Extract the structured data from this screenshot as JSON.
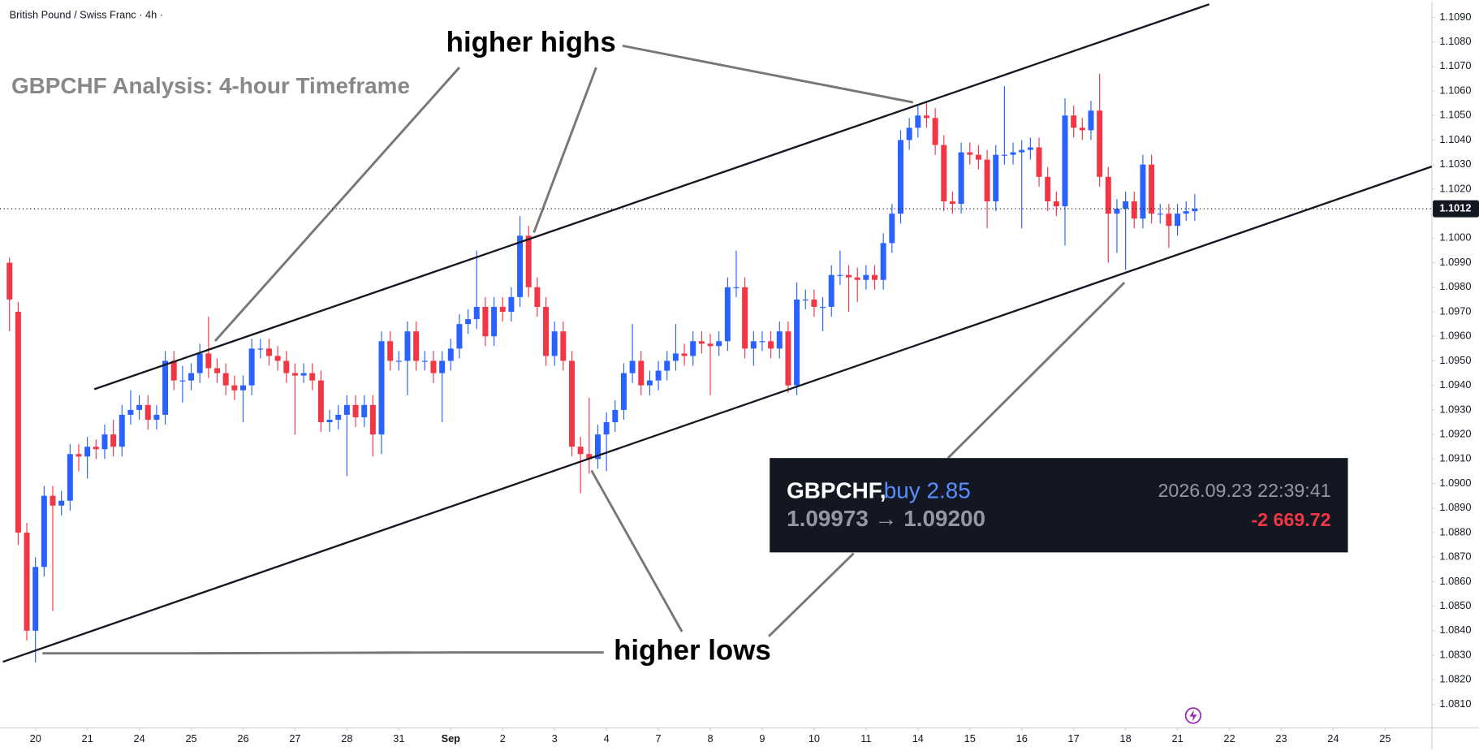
{
  "chart_data": {
    "type": "candlestick",
    "header": "British Pound / Swiss Franc · 4h ·",
    "title": "GBPCHF Analysis: 4-hour Timeframe",
    "annotations": {
      "highs": "higher highs",
      "lows": "higher lows"
    },
    "trade": {
      "symbol": "GBPCHF,",
      "side": "buy 2.85",
      "time": "2026.09.23 22:39:41",
      "prices": "1.09973 → 1.09200",
      "pnl": "-2 669.72"
    },
    "up_color": "#2962ff",
    "down_color": "#f23645",
    "last_price": 1.1012,
    "ylim": [
      1.08004,
      1.10965
    ],
    "yticks": [
      {
        "value": 1.081,
        "label": "1.0810"
      },
      {
        "value": 1.082,
        "label": "1.0820"
      },
      {
        "value": 1.083,
        "label": "1.0830"
      },
      {
        "value": 1.084,
        "label": "1.0840"
      },
      {
        "value": 1.085,
        "label": "1.0850"
      },
      {
        "value": 1.086,
        "label": "1.0860"
      },
      {
        "value": 1.087,
        "label": "1.0870"
      },
      {
        "value": 1.088,
        "label": "1.0880"
      },
      {
        "value": 1.089,
        "label": "1.0890"
      },
      {
        "value": 1.09,
        "label": "1.0900"
      },
      {
        "value": 1.091,
        "label": "1.0910"
      },
      {
        "value": 1.092,
        "label": "1.0920"
      },
      {
        "value": 1.093,
        "label": "1.0930"
      },
      {
        "value": 1.094,
        "label": "1.0940"
      },
      {
        "value": 1.095,
        "label": "1.0950"
      },
      {
        "value": 1.096,
        "label": "1.0960"
      },
      {
        "value": 1.097,
        "label": "1.0970"
      },
      {
        "value": 1.098,
        "label": "1.0980"
      },
      {
        "value": 1.099,
        "label": "1.0990"
      },
      {
        "value": 1.1,
        "label": "1.1000"
      },
      {
        "value": 1.101,
        "label": "1.1010"
      },
      {
        "value": 1.102,
        "label": "1.1020"
      },
      {
        "value": 1.103,
        "label": "1.1030"
      },
      {
        "value": 1.104,
        "label": "1.1040"
      },
      {
        "value": 1.105,
        "label": "1.1050"
      },
      {
        "value": 1.106,
        "label": "1.1060"
      },
      {
        "value": 1.107,
        "label": "1.1070"
      },
      {
        "value": 1.108,
        "label": "1.1080"
      },
      {
        "value": 1.109,
        "label": "1.1090"
      }
    ],
    "xlim": [
      -1.1,
      164.4
    ],
    "xticks": [
      {
        "value": 3,
        "label": "20"
      },
      {
        "value": 9,
        "label": "21"
      },
      {
        "value": 15,
        "label": "24"
      },
      {
        "value": 21,
        "label": "25"
      },
      {
        "value": 27,
        "label": "26"
      },
      {
        "value": 33,
        "label": "27"
      },
      {
        "value": 39,
        "label": "28"
      },
      {
        "value": 45,
        "label": "31"
      },
      {
        "value": 51,
        "label": "Sep"
      },
      {
        "value": 57,
        "label": "2"
      },
      {
        "value": 63,
        "label": "3"
      },
      {
        "value": 69,
        "label": "4"
      },
      {
        "value": 75,
        "label": "7"
      },
      {
        "value": 81,
        "label": "8"
      },
      {
        "value": 87,
        "label": "9"
      },
      {
        "value": 93,
        "label": "10"
      },
      {
        "value": 99,
        "label": "11"
      },
      {
        "value": 105,
        "label": "14"
      },
      {
        "value": 111,
        "label": "15"
      },
      {
        "value": 117,
        "label": "16"
      },
      {
        "value": 123,
        "label": "17"
      },
      {
        "value": 129,
        "label": "18"
      },
      {
        "value": 135,
        "label": "21"
      },
      {
        "value": 141,
        "label": "22"
      },
      {
        "value": 147,
        "label": "23"
      },
      {
        "value": 153,
        "label": "24"
      },
      {
        "value": 159,
        "label": "25"
      }
    ],
    "ohlc": [
      [
        1.099,
        1.0992,
        1.0962,
        1.0975
      ],
      [
        1.097,
        1.0974,
        1.0875,
        1.088
      ],
      [
        1.088,
        1.0884,
        1.0836,
        1.084
      ],
      [
        1.084,
        1.087,
        1.0827,
        1.0866
      ],
      [
        1.0866,
        1.0899,
        1.0862,
        1.0895
      ],
      [
        1.0895,
        1.0899,
        1.0848,
        1.0891
      ],
      [
        1.0891,
        1.0897,
        1.0887,
        1.0893
      ],
      [
        1.0893,
        1.0916,
        1.0889,
        1.0912
      ],
      [
        1.0912,
        1.0916,
        1.0905,
        1.0911
      ],
      [
        1.0911,
        1.0919,
        1.0902,
        1.0915
      ],
      [
        1.0915,
        1.0918,
        1.091,
        1.0914
      ],
      [
        1.0914,
        1.0924,
        1.091,
        1.092
      ],
      [
        1.092,
        1.0926,
        1.0911,
        1.0915
      ],
      [
        1.0915,
        1.0932,
        1.0911,
        1.0928
      ],
      [
        1.0928,
        1.0938,
        1.0924,
        1.093
      ],
      [
        1.093,
        1.0936,
        1.0926,
        1.0932
      ],
      [
        1.0932,
        1.0936,
        1.0922,
        1.0926
      ],
      [
        1.0926,
        1.0932,
        1.0922,
        1.0928
      ],
      [
        1.0928,
        1.0954,
        1.0924,
        1.095
      ],
      [
        1.095,
        1.0954,
        1.0938,
        1.0942
      ],
      [
        1.0942,
        1.0948,
        1.0933,
        1.0942
      ],
      [
        1.0942,
        1.0949,
        1.0938,
        1.0945
      ],
      [
        1.0945,
        1.0957,
        1.0941,
        1.0953
      ],
      [
        1.0953,
        1.0968,
        1.0943,
        1.0947
      ],
      [
        1.0947,
        1.0951,
        1.0941,
        1.0945
      ],
      [
        1.0945,
        1.0949,
        1.0936,
        1.094
      ],
      [
        1.094,
        1.0944,
        1.0934,
        1.0938
      ],
      [
        1.0938,
        1.0944,
        1.0925,
        1.094
      ],
      [
        1.094,
        1.0959,
        1.0936,
        1.0955
      ],
      [
        1.0955,
        1.0959,
        1.0951,
        1.0955
      ],
      [
        1.0955,
        1.0959,
        1.0948,
        1.0952
      ],
      [
        1.0952,
        1.0956,
        1.0946,
        1.095
      ],
      [
        1.095,
        1.0954,
        1.0941,
        1.0945
      ],
      [
        1.0945,
        1.0949,
        1.092,
        1.0944
      ],
      [
        1.0944,
        1.0949,
        1.0941,
        1.0945
      ],
      [
        1.0945,
        1.0949,
        1.0938,
        1.0942
      ],
      [
        1.0942,
        1.0946,
        1.0921,
        1.0925
      ],
      [
        1.0925,
        1.093,
        1.0921,
        1.0926
      ],
      [
        1.0926,
        1.0932,
        1.0922,
        1.0928
      ],
      [
        1.0928,
        1.0936,
        1.0903,
        1.0932
      ],
      [
        1.0932,
        1.0936,
        1.0923,
        1.0927
      ],
      [
        1.0927,
        1.0936,
        1.0923,
        1.0932
      ],
      [
        1.0932,
        1.0936,
        1.0911,
        1.092
      ],
      [
        1.092,
        1.0962,
        1.0912,
        1.0958
      ],
      [
        1.0958,
        1.0962,
        1.0946,
        1.095
      ],
      [
        1.095,
        1.0954,
        1.0946,
        1.095
      ],
      [
        1.095,
        1.0966,
        1.0936,
        1.0962
      ],
      [
        1.0962,
        1.0966,
        1.0946,
        1.095
      ],
      [
        1.095,
        1.0954,
        1.0946,
        1.095
      ],
      [
        1.095,
        1.0954,
        1.0941,
        1.0945
      ],
      [
        1.0945,
        1.0954,
        1.0925,
        1.095
      ],
      [
        1.095,
        1.0959,
        1.0946,
        1.0955
      ],
      [
        1.0955,
        1.0969,
        1.0951,
        1.0965
      ],
      [
        1.0965,
        1.0971,
        1.0961,
        1.0967
      ],
      [
        1.0967,
        1.0995,
        1.0963,
        1.0972
      ],
      [
        1.0972,
        1.0976,
        1.0956,
        1.096
      ],
      [
        1.096,
        1.0976,
        1.0956,
        1.0972
      ],
      [
        1.0972,
        1.0976,
        1.0966,
        1.097
      ],
      [
        1.097,
        1.098,
        1.0966,
        1.0976
      ],
      [
        1.0976,
        1.1009,
        1.0972,
        1.1001
      ],
      [
        1.1001,
        1.1005,
        1.0976,
        1.098
      ],
      [
        1.098,
        1.0984,
        1.0968,
        1.0972
      ],
      [
        1.0972,
        1.0976,
        1.0948,
        1.0952
      ],
      [
        1.0952,
        1.0966,
        1.0948,
        1.0962
      ],
      [
        1.0962,
        1.0966,
        1.0946,
        1.095
      ],
      [
        1.095,
        1.0954,
        1.0911,
        1.0915
      ],
      [
        1.0915,
        1.0919,
        1.0896,
        1.0912
      ],
      [
        1.0912,
        1.0935,
        1.0904,
        1.091
      ],
      [
        1.091,
        1.0924,
        1.0906,
        1.092
      ],
      [
        1.092,
        1.0929,
        1.0905,
        1.0925
      ],
      [
        1.0925,
        1.0934,
        1.0921,
        1.093
      ],
      [
        1.093,
        1.0949,
        1.0926,
        1.0945
      ],
      [
        1.0945,
        1.0965,
        1.0941,
        1.095
      ],
      [
        1.095,
        1.0954,
        1.0936,
        1.094
      ],
      [
        1.094,
        1.0946,
        1.0936,
        1.0942
      ],
      [
        1.0942,
        1.095,
        1.0938,
        1.0946
      ],
      [
        1.0946,
        1.0954,
        1.0942,
        1.095
      ],
      [
        1.095,
        1.0965,
        1.0946,
        1.0953
      ],
      [
        1.0953,
        1.0957,
        1.0948,
        1.0952
      ],
      [
        1.0952,
        1.0962,
        1.0948,
        1.0958
      ],
      [
        1.0958,
        1.0962,
        1.0953,
        1.0957
      ],
      [
        1.0957,
        1.0961,
        1.0936,
        1.0956
      ],
      [
        1.0956,
        1.0962,
        1.0952,
        1.0958
      ],
      [
        1.0958,
        1.0984,
        1.0954,
        1.098
      ],
      [
        1.098,
        1.0995,
        1.0976,
        1.098
      ],
      [
        1.098,
        1.0984,
        1.0951,
        1.0955
      ],
      [
        1.0955,
        1.0962,
        1.0948,
        1.0958
      ],
      [
        1.0958,
        1.0962,
        1.0954,
        1.0958
      ],
      [
        1.0958,
        1.0962,
        1.0951,
        1.0955
      ],
      [
        1.0955,
        1.0966,
        1.0951,
        1.0962
      ],
      [
        1.0962,
        1.0966,
        1.0937,
        1.094
      ],
      [
        1.094,
        1.0982,
        1.0936,
        1.0975
      ],
      [
        1.0975,
        1.0979,
        1.0971,
        1.0975
      ],
      [
        1.0975,
        1.0979,
        1.0968,
        1.0972
      ],
      [
        1.0972,
        1.0976,
        1.0962,
        1.0972
      ],
      [
        1.0972,
        1.0989,
        1.0968,
        1.0985
      ],
      [
        1.0985,
        1.0995,
        1.0981,
        1.0985
      ],
      [
        1.0985,
        1.0989,
        1.097,
        1.0984
      ],
      [
        1.0984,
        1.0988,
        1.0974,
        1.0983
      ],
      [
        1.0983,
        1.0989,
        1.0979,
        1.0985
      ],
      [
        1.0985,
        1.0989,
        1.0979,
        1.0983
      ],
      [
        1.0983,
        1.1002,
        1.0979,
        1.0998
      ],
      [
        1.0998,
        1.1014,
        1.0994,
        1.101
      ],
      [
        1.101,
        1.1044,
        1.1006,
        1.104
      ],
      [
        1.104,
        1.1049,
        1.1036,
        1.1045
      ],
      [
        1.1045,
        1.1054,
        1.1041,
        1.105
      ],
      [
        1.105,
        1.1056,
        1.1045,
        1.1049
      ],
      [
        1.1049,
        1.1053,
        1.1034,
        1.1038
      ],
      [
        1.1038,
        1.1042,
        1.1011,
        1.1015
      ],
      [
        1.1015,
        1.1019,
        1.101,
        1.1014
      ],
      [
        1.1014,
        1.1039,
        1.101,
        1.1035
      ],
      [
        1.1035,
        1.1039,
        1.103,
        1.1034
      ],
      [
        1.1034,
        1.1038,
        1.1028,
        1.1032
      ],
      [
        1.1032,
        1.1036,
        1.1004,
        1.1015
      ],
      [
        1.1015,
        1.1038,
        1.1011,
        1.1034
      ],
      [
        1.1034,
        1.1062,
        1.103,
        1.1034
      ],
      [
        1.1034,
        1.1039,
        1.103,
        1.1035
      ],
      [
        1.1035,
        1.104,
        1.1004,
        1.1036
      ],
      [
        1.1036,
        1.1041,
        1.1032,
        1.1037
      ],
      [
        1.1037,
        1.1041,
        1.1021,
        1.1025
      ],
      [
        1.1025,
        1.1029,
        1.1011,
        1.1015
      ],
      [
        1.1015,
        1.1019,
        1.1009,
        1.1013
      ],
      [
        1.1013,
        1.1057,
        1.0997,
        1.105
      ],
      [
        1.105,
        1.1054,
        1.1041,
        1.1045
      ],
      [
        1.1045,
        1.1049,
        1.104,
        1.1044
      ],
      [
        1.1044,
        1.1056,
        1.104,
        1.1052
      ],
      [
        1.1052,
        1.1067,
        1.1021,
        1.1025
      ],
      [
        1.1025,
        1.1029,
        1.099,
        1.101
      ],
      [
        1.101,
        1.1016,
        1.0994,
        1.1012
      ],
      [
        1.1012,
        1.1019,
        1.0987,
        1.1015
      ],
      [
        1.1015,
        1.1019,
        1.1004,
        1.1008
      ],
      [
        1.1008,
        1.1034,
        1.1004,
        1.103
      ],
      [
        1.103,
        1.1034,
        1.1006,
        1.101
      ],
      [
        1.101,
        1.1014,
        1.1006,
        1.101
      ],
      [
        1.101,
        1.1014,
        1.0996,
        1.1005
      ],
      [
        1.1005,
        1.1014,
        1.1001,
        1.101
      ],
      [
        1.101,
        1.1015,
        1.1007,
        1.1011
      ],
      [
        1.1011,
        1.1018,
        1.1007,
        1.1012
      ]
    ]
  }
}
